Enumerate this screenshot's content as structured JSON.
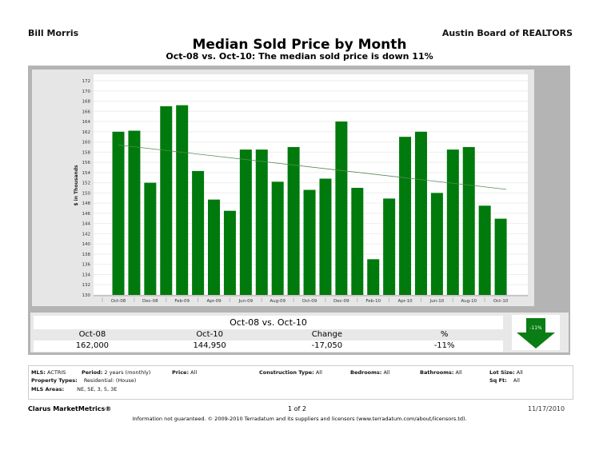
{
  "header": {
    "agent": "Bill Morris",
    "board": "Austin Board of REALTORS"
  },
  "title": "Median Sold Price by Month",
  "subtitle": "Oct-08 vs. Oct-10:  The median sold price is down 11%",
  "chart_data": {
    "type": "bar",
    "ylabel": "$ in Thousands",
    "ylim": [
      130,
      172
    ],
    "yticks": [
      130,
      132,
      134,
      136,
      138,
      140,
      142,
      144,
      146,
      148,
      150,
      152,
      154,
      156,
      158,
      160,
      162,
      164,
      166,
      168,
      170,
      172
    ],
    "categories": [
      "Oct-08",
      "Nov-08",
      "Dec-08",
      "Jan-09",
      "Feb-09",
      "Mar-09",
      "Apr-09",
      "May-09",
      "Jun-09",
      "Jul-09",
      "Aug-09",
      "Sep-09",
      "Oct-09",
      "Nov-09",
      "Dec-09",
      "Jan-10",
      "Feb-10",
      "Mar-10",
      "Apr-10",
      "May-10",
      "Jun-10",
      "Jul-10",
      "Aug-10",
      "Sep-10",
      "Oct-10"
    ],
    "xtick_labels": [
      "Oct-08",
      "Dec-08",
      "Feb-09",
      "Apr-09",
      "Jun-09",
      "Aug-09",
      "Oct-09",
      "Dec-09",
      "Feb-10",
      "Apr-10",
      "Jun-10",
      "Aug-10",
      "Oct-10"
    ],
    "values": [
      162,
      162.2,
      152,
      167,
      167.2,
      154.3,
      148.7,
      146.5,
      158.5,
      158.5,
      152.2,
      159,
      150.6,
      152.8,
      164,
      151,
      137,
      148.9,
      161,
      162,
      150,
      158.5,
      159,
      147.5,
      144.95
    ],
    "trendline": {
      "start": 159.4,
      "end": 150.7
    },
    "grid": true,
    "bar_color": "#007a0c",
    "trend_color": "#5a8a5a"
  },
  "summary": {
    "title": "Oct-08 vs. Oct-10",
    "headers": [
      "Oct-08",
      "Oct-10",
      "Change",
      "%"
    ],
    "values": [
      "162,000",
      "144,950",
      "-17,050",
      "-11%"
    ],
    "arrow_label": "-11%",
    "arrow_icon": "down-arrow"
  },
  "criteria": {
    "mls_label": "MLS:",
    "mls": "ACTRIS",
    "period_label": "Period:",
    "period": "2 years (monthly)",
    "price_label": "Price:",
    "price": "All",
    "construction_label": "Construction Type:",
    "construction": "All",
    "bedrooms_label": "Bedrooms:",
    "bedrooms": "All",
    "bathrooms_label": "Bathrooms:",
    "bathrooms": "All",
    "lot_label": "Lot Size:",
    "lot": "All",
    "ptype_label": "Property Types:",
    "ptype": "Residential: (House)",
    "sqft_label": "Sq Ft:",
    "sqft": "All",
    "areas_label": "MLS Areas:",
    "areas": "NE, SE, 3, 5, 3E"
  },
  "footer": {
    "brand": "Clarus MarketMetrics®",
    "page": "1 of 2",
    "date": "11/17/2010",
    "disclaimer": "Information not guaranteed.  © 2009-2010 Terradatum and its suppliers and licensors (www.terradatum.com/about/licensors.td)."
  }
}
